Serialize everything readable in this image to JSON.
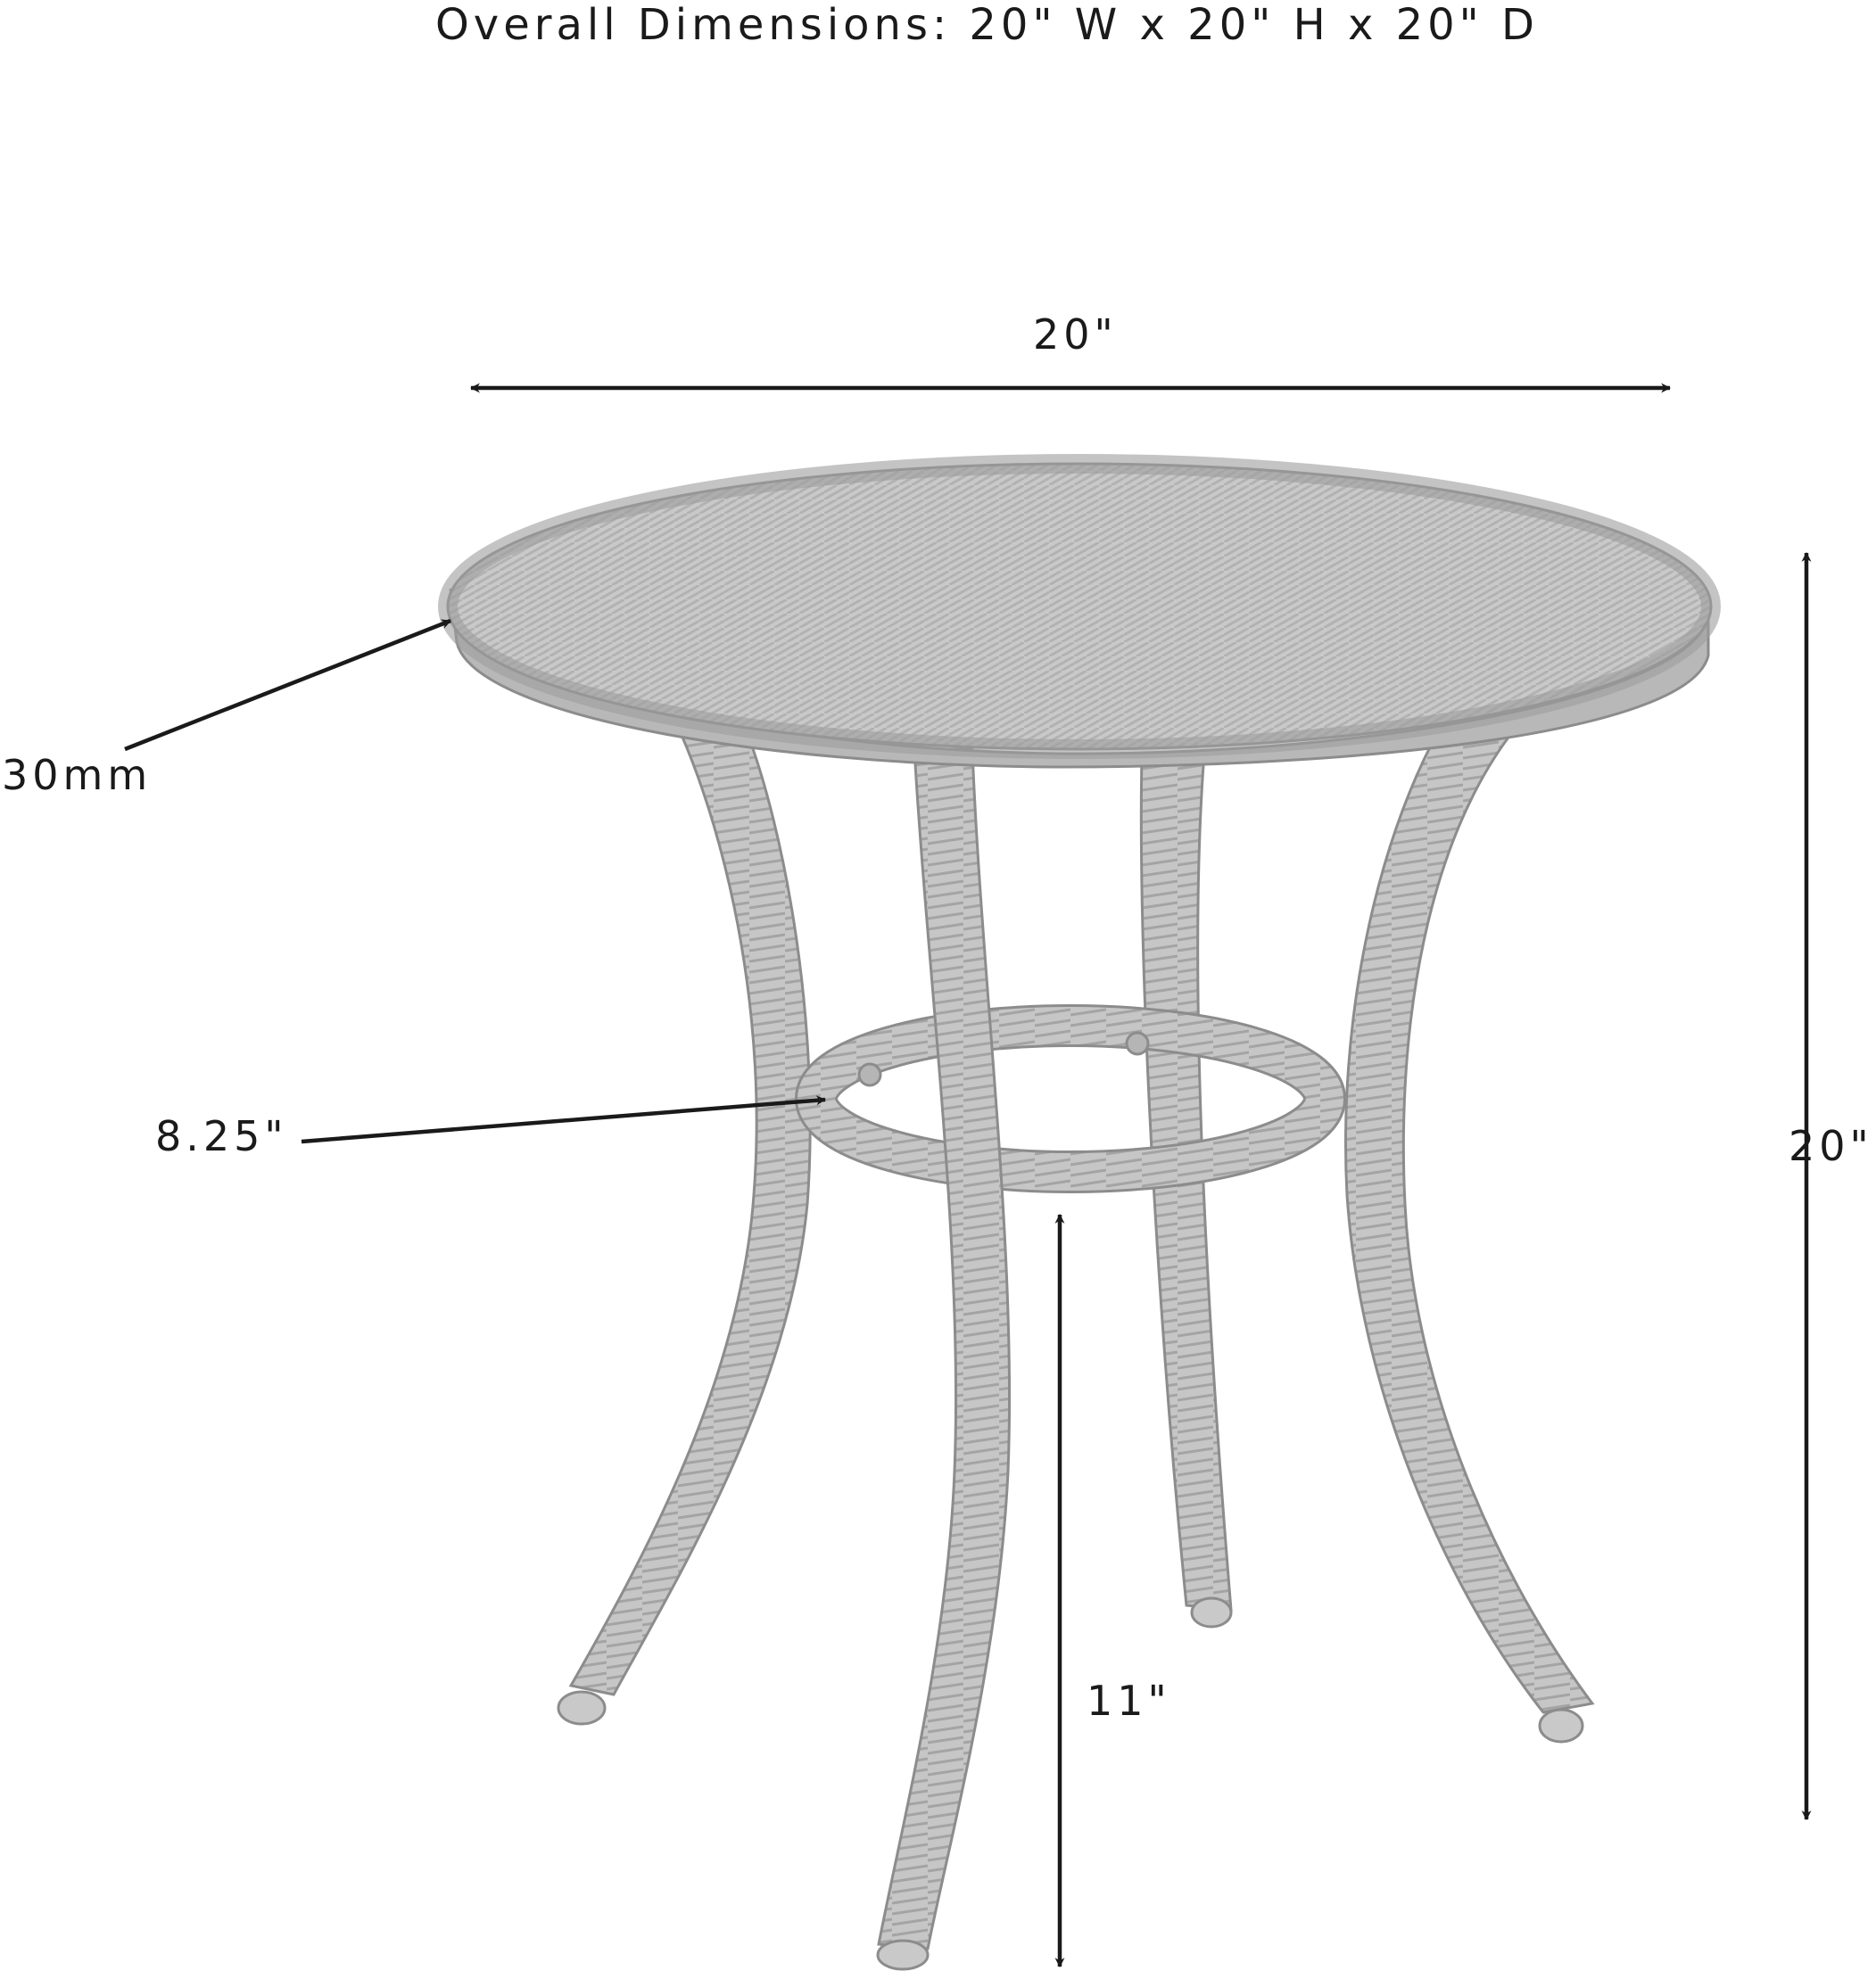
{
  "title": "Overall Dimensions: 20\" W x 20\" H x 20\" D",
  "dimensions": {
    "width_label": "20\"",
    "height_label": "20\"",
    "top_thickness_label": "30mm",
    "ring_label": "8.25\"",
    "leg_clearance_label": "11\""
  },
  "colors": {
    "ink": "#1a1a1a",
    "table_fill": "#c9c9c9",
    "table_stroke": "#8c8c8c",
    "weave": "#a8a8a8"
  }
}
